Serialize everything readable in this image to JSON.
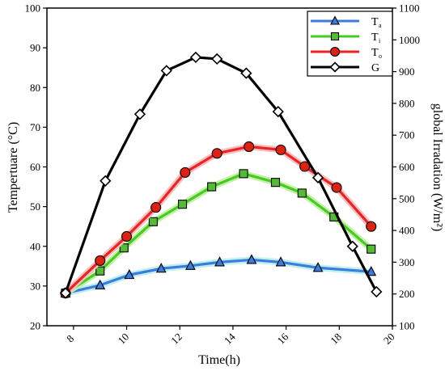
{
  "chart_data": {
    "type": "line",
    "xlabel": "Time(h)",
    "ylabel_left": "Tempertuare (°C)",
    "ylabel_right": "global Irradation (W/m²)",
    "xlim": [
      7,
      20
    ],
    "ylim_left": [
      20,
      100
    ],
    "ylim_right": [
      100,
      1100
    ],
    "x_ticks": [
      8,
      10,
      12,
      14,
      16,
      18,
      20
    ],
    "y_ticks_left": [
      20,
      30,
      40,
      50,
      60,
      70,
      80,
      90,
      100
    ],
    "y_ticks_right": [
      100,
      200,
      300,
      400,
      500,
      600,
      700,
      800,
      900,
      1000,
      1100
    ],
    "grid": false,
    "legend_position": "top-right",
    "series": [
      {
        "name": "T",
        "name_sub": "a",
        "axis": "left",
        "color": "#3b7ddd",
        "halo": "#bfeff0",
        "marker": "triangle",
        "marker_fill": "#3b7ddd",
        "x": [
          7.7,
          9.0,
          10.1,
          11.3,
          12.4,
          13.5,
          14.7,
          15.8,
          17.2,
          19.2
        ],
        "y": [
          28.2,
          30.2,
          32.8,
          34.4,
          35.1,
          36.0,
          36.6,
          36.0,
          34.6,
          33.6
        ]
      },
      {
        "name": "T",
        "name_sub": "i",
        "axis": "left",
        "color": "#44cc22",
        "halo": "#c6f0a8",
        "marker": "square",
        "marker_fill": "#55bb33",
        "x": [
          7.7,
          9.0,
          9.9,
          11.0,
          12.1,
          13.2,
          14.4,
          15.6,
          16.6,
          17.8,
          19.2
        ],
        "y": [
          28.2,
          33.8,
          39.6,
          46.2,
          50.6,
          55.0,
          58.3,
          56.1,
          53.4,
          47.4,
          39.3
        ]
      },
      {
        "name": "T",
        "name_sub": "o",
        "axis": "left",
        "color": "#ee2222",
        "halo": "#f8c0c0",
        "marker": "circle",
        "marker_fill": "#dd2211",
        "x": [
          7.7,
          9.0,
          10.0,
          11.1,
          12.2,
          13.4,
          14.6,
          15.8,
          16.7,
          17.9,
          19.2
        ],
        "y": [
          28.2,
          36.4,
          42.5,
          49.8,
          58.6,
          63.4,
          65.1,
          64.3,
          60.1,
          54.8,
          45.0
        ]
      },
      {
        "name": "G",
        "name_sub": "",
        "axis": "right",
        "color": "#000000",
        "halo": "",
        "marker": "diamond",
        "marker_fill": "#ffffff",
        "x": [
          7.7,
          9.2,
          10.5,
          11.5,
          12.6,
          13.4,
          14.5,
          15.7,
          17.2,
          18.5,
          19.4
        ],
        "y": [
          203,
          556,
          766,
          903,
          945,
          940,
          895,
          774,
          566,
          350,
          207
        ]
      }
    ]
  }
}
